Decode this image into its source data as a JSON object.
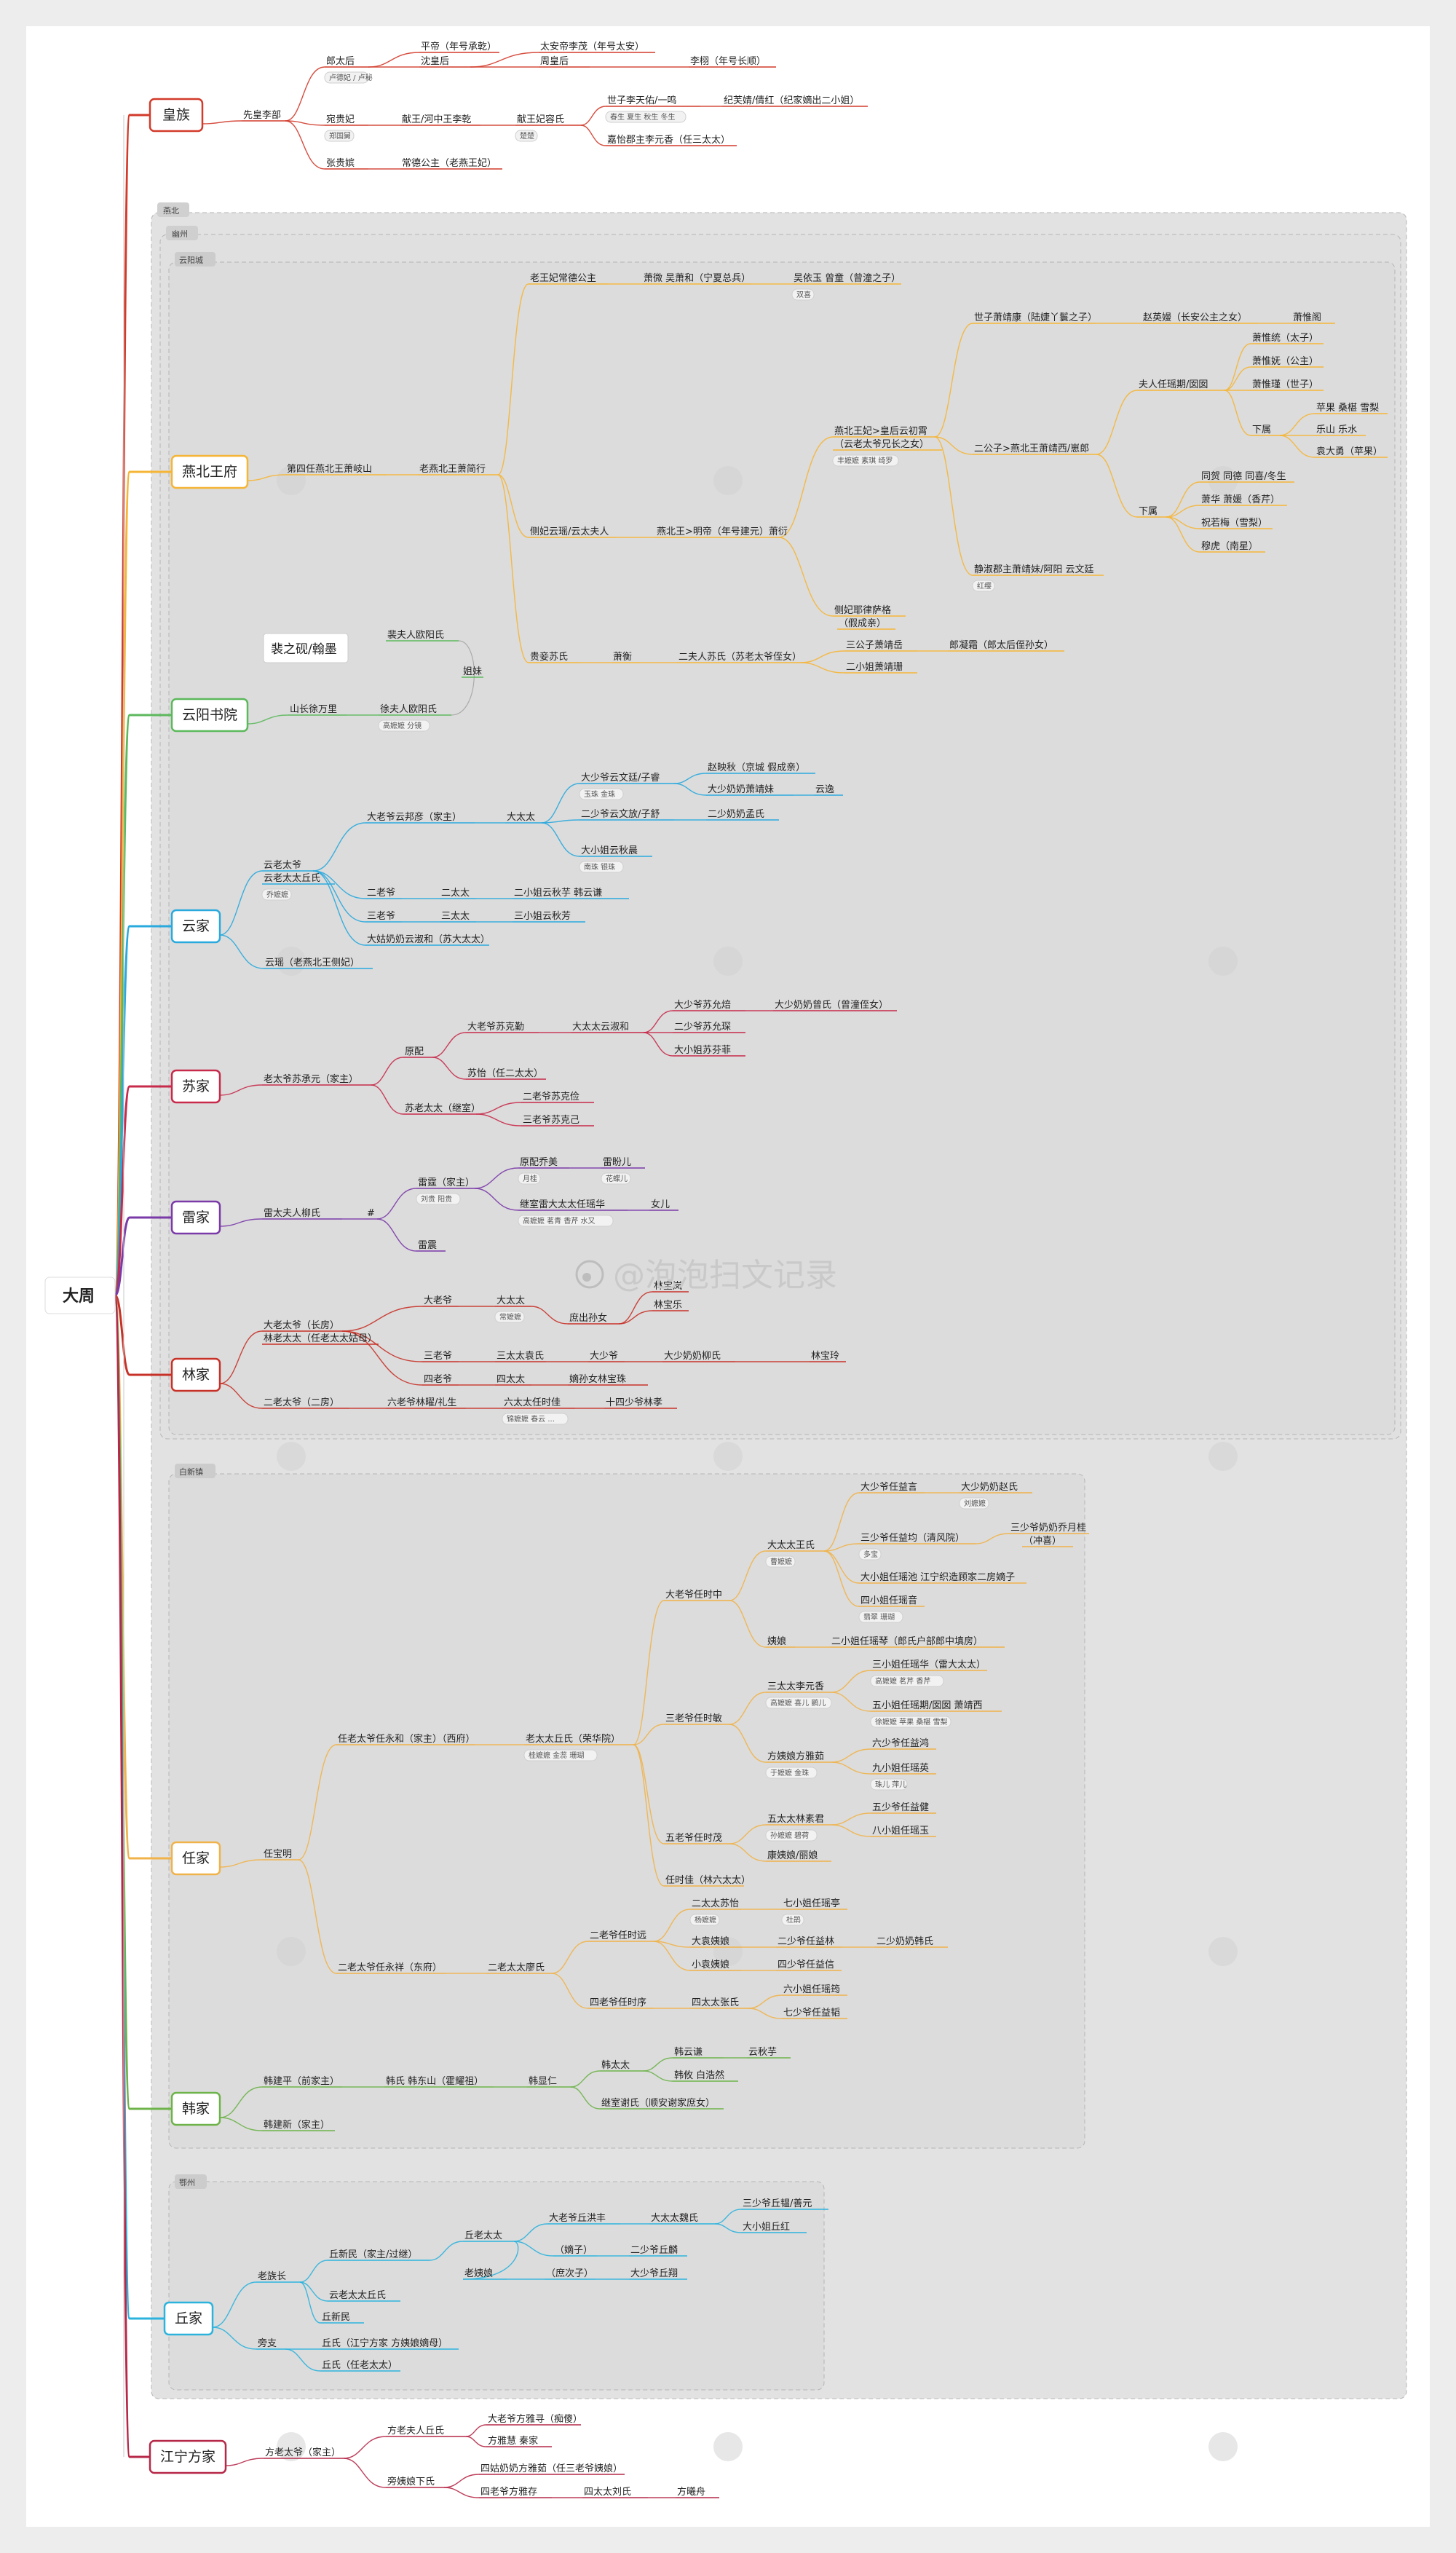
{
  "root": "大周",
  "watermark": "@泡泡扫文记录",
  "regions": {
    "yanbei": "燕北",
    "youzhou": "幽州",
    "yunyang": "云阳城",
    "baixin": "白新镇",
    "ezhou": "鄂州"
  },
  "callout": "裴之砚/翰墨",
  "colors": {
    "huangzu": "#d23a2a",
    "yanbei": "#f5b536",
    "shuyuan": "#5cb85c",
    "yunjia": "#29a9dd",
    "sujia": "#c72a4a",
    "leijia": "#7a3aa8",
    "linjia": "#c73228",
    "renjia": "#f0b24a",
    "hanjia": "#6db34a",
    "qiujia": "#2cb3dd",
    "fangjia": "#b62848"
  },
  "nodes": [
    {
      "id": "huangzu",
      "main": true,
      "text": "皇族"
    },
    {
      "id": "hz1",
      "text": "先皇李部"
    },
    {
      "id": "hz2",
      "text": "郎太后"
    },
    {
      "id": "hz3",
      "text": "平帝（年号承乾）"
    },
    {
      "id": "hz4",
      "text": "沈皇后"
    },
    {
      "id": "hz5",
      "text": "太安帝李茂（年号太安）"
    },
    {
      "id": "hz6",
      "text": "周皇后"
    },
    {
      "id": "hz7",
      "text": "李栩（年号长顺）"
    },
    {
      "id": "hz8",
      "text": "宛贵妃"
    },
    {
      "id": "hz9",
      "text": "献王/河中王李乾"
    },
    {
      "id": "hz10",
      "text": "献王妃容氏"
    },
    {
      "id": "hz11",
      "text": "世子李天佑/一鸣"
    },
    {
      "id": "hz12",
      "text": "纪芙婧/倩红（纪家嫡出二小姐）"
    },
    {
      "id": "hz13",
      "text": "嘉怡郡主李元香（任三太太）"
    },
    {
      "id": "hz14",
      "text": "张贵嫔"
    },
    {
      "id": "hz15",
      "text": "常德公主（老燕王妃）"
    },
    {
      "id": "yanbei",
      "main": true,
      "text": "燕北王府"
    },
    {
      "id": "yb1",
      "text": "第四任燕北王萧岐山"
    },
    {
      "id": "yb2",
      "text": "老燕北王萧简行"
    },
    {
      "id": "yb3",
      "text": "老王妃常德公主"
    },
    {
      "id": "yb4",
      "text": "萧微 吴萧和（宁夏总兵）"
    },
    {
      "id": "yb5",
      "text": "吴依玉 曾童（曾潼之子）"
    },
    {
      "id": "yb6",
      "text": "燕北王妃>皇后云初霄"
    },
    {
      "id": "yb6b",
      "text": "（云老太爷兄长之女）"
    },
    {
      "id": "yb7",
      "text": "世子萧靖康（陆婕丫鬟之子）"
    },
    {
      "id": "yb8",
      "text": "赵英嫚（长安公主之女）"
    },
    {
      "id": "yb9",
      "text": "萧惟阁"
    },
    {
      "id": "yb10",
      "text": "二公子>燕北王萧靖西/崽郎"
    },
    {
      "id": "yb11",
      "text": "夫人任瑶期/囡囡"
    },
    {
      "id": "yb12",
      "text": "萧惟统（太子）"
    },
    {
      "id": "yb13",
      "text": "萧惟妩（公主）"
    },
    {
      "id": "yb14",
      "text": "萧惟瑾（世子）"
    },
    {
      "id": "yb15",
      "text": "下属"
    },
    {
      "id": "yb16",
      "text": "苹果 桑椹 雪梨"
    },
    {
      "id": "yb17",
      "text": "乐山 乐水"
    },
    {
      "id": "yb18",
      "text": "袁大勇（苹果）"
    },
    {
      "id": "yb19",
      "text": "下属"
    },
    {
      "id": "yb20",
      "text": "同贺 同德 同喜/冬生"
    },
    {
      "id": "yb21",
      "text": "萧华 萧媛（香芹）"
    },
    {
      "id": "yb22",
      "text": "祝若梅（雪梨）"
    },
    {
      "id": "yb23",
      "text": "穆虎（南星）"
    },
    {
      "id": "yb24",
      "text": "静淑郡主萧靖妹/阿阳 云文廷"
    },
    {
      "id": "yb25",
      "text": "侧妃云瑶/云太夫人"
    },
    {
      "id": "yb26",
      "text": "燕北王>明帝（年号建元）萧衍"
    },
    {
      "id": "yb27",
      "text": "侧妃耶律萨格"
    },
    {
      "id": "yb27b",
      "text": "（假成亲）"
    },
    {
      "id": "yb28",
      "text": "贵妾苏氏"
    },
    {
      "id": "yb29",
      "text": "萧衡"
    },
    {
      "id": "yb30",
      "text": "二夫人苏氏（苏老太爷侄女）"
    },
    {
      "id": "yb31",
      "text": "三公子萧靖岳"
    },
    {
      "id": "yb32",
      "text": "郎凝霜（郎太后侄孙女）"
    },
    {
      "id": "yb33",
      "text": "二小姐萧靖珊"
    },
    {
      "id": "shuyuan",
      "main": true,
      "text": "云阳书院"
    },
    {
      "id": "sy1",
      "text": "山长徐万里"
    },
    {
      "id": "sy2",
      "text": "裴夫人欧阳氏"
    },
    {
      "id": "sy3",
      "text": "徐夫人欧阳氏"
    },
    {
      "id": "sy4",
      "text": "姐妹"
    },
    {
      "id": "yunjia",
      "main": true,
      "text": "云家"
    },
    {
      "id": "yj1",
      "text": "云老太爷"
    },
    {
      "id": "yj1b",
      "text": "云老太太丘氏"
    },
    {
      "id": "yj2",
      "text": "大老爷云邦彦（家主）"
    },
    {
      "id": "yj3",
      "text": "大太太"
    },
    {
      "id": "yj4",
      "text": "大少爷云文廷/子睿"
    },
    {
      "id": "yj5",
      "text": "赵映秋（京城 假成亲）"
    },
    {
      "id": "yj6",
      "text": "大少奶奶萧靖妹"
    },
    {
      "id": "yj7",
      "text": "云逸"
    },
    {
      "id": "yj8",
      "text": "二少爷云文放/子舒"
    },
    {
      "id": "yj9",
      "text": "二少奶奶孟氏"
    },
    {
      "id": "yj10",
      "text": "大小姐云秋晨"
    },
    {
      "id": "yj11",
      "text": "二老爷"
    },
    {
      "id": "yj12",
      "text": "二太太"
    },
    {
      "id": "yj13",
      "text": "二小姐云秋芋 韩云谦"
    },
    {
      "id": "yj14",
      "text": "三老爷"
    },
    {
      "id": "yj15",
      "text": "三太太"
    },
    {
      "id": "yj16",
      "text": "三小姐云秋芳"
    },
    {
      "id": "yj17",
      "text": "大姑奶奶云淑和（苏大太太）"
    },
    {
      "id": "yj18",
      "text": "云瑶（老燕北王侧妃）"
    },
    {
      "id": "sujia",
      "main": true,
      "text": "苏家"
    },
    {
      "id": "sj1",
      "text": "老太爷苏承元（家主）"
    },
    {
      "id": "sj2",
      "text": "原配"
    },
    {
      "id": "sj3",
      "text": "大老爷苏克勤"
    },
    {
      "id": "sj4",
      "text": "大太太云淑和"
    },
    {
      "id": "sj5",
      "text": "大少爷苏允焙"
    },
    {
      "id": "sj6",
      "text": "大少奶奶曾氏（曾潼侄女）"
    },
    {
      "id": "sj7",
      "text": "二少爷苏允琛"
    },
    {
      "id": "sj8",
      "text": "大小姐苏芬菲"
    },
    {
      "id": "sj9",
      "text": "苏怡（任二太太）"
    },
    {
      "id": "sj10",
      "text": "苏老太太（继室）"
    },
    {
      "id": "sj11",
      "text": "二老爷苏克俭"
    },
    {
      "id": "sj12",
      "text": "三老爷苏克己"
    },
    {
      "id": "leijia",
      "main": true,
      "text": "雷家"
    },
    {
      "id": "lj1",
      "text": "雷太夫人柳氏"
    },
    {
      "id": "lj2",
      "text": "雷霆（家主）"
    },
    {
      "id": "lj3",
      "text": "原配乔美"
    },
    {
      "id": "lj4",
      "text": "雷盼儿"
    },
    {
      "id": "lj5",
      "text": "继室雷大太太任瑶华"
    },
    {
      "id": "lj6",
      "text": "女儿"
    },
    {
      "id": "lj7",
      "text": "雷震"
    },
    {
      "id": "lj8",
      "text": "#"
    },
    {
      "id": "linjia",
      "main": true,
      "text": "林家"
    },
    {
      "id": "lin1",
      "text": "大老太爷（长房）"
    },
    {
      "id": "lin1b",
      "text": "林老太太（任老太太姑母）"
    },
    {
      "id": "lin2",
      "text": "大老爷"
    },
    {
      "id": "lin3",
      "text": "大太太"
    },
    {
      "id": "lin4",
      "text": "林宝岚"
    },
    {
      "id": "lin5",
      "text": "庶出孙女"
    },
    {
      "id": "lin6",
      "text": "林宝乐"
    },
    {
      "id": "lin7",
      "text": "三老爷"
    },
    {
      "id": "lin8",
      "text": "三太太袁氏"
    },
    {
      "id": "lin9",
      "text": "大少爷"
    },
    {
      "id": "lin10",
      "text": "大少奶奶柳氏"
    },
    {
      "id": "lin11",
      "text": "林宝玲"
    },
    {
      "id": "lin12",
      "text": "四老爷"
    },
    {
      "id": "lin13",
      "text": "四太太"
    },
    {
      "id": "lin14",
      "text": "嫡孙女林宝珠"
    },
    {
      "id": "lin15",
      "text": "二老太爷（二房）"
    },
    {
      "id": "lin16",
      "text": "六老爷林曜/礼生"
    },
    {
      "id": "lin17",
      "text": "六太太任时佳"
    },
    {
      "id": "lin18",
      "text": "十四少爷林孝"
    },
    {
      "id": "renjia",
      "main": true,
      "text": "任家"
    },
    {
      "id": "rj1",
      "text": "任宝明"
    },
    {
      "id": "rj2",
      "text": "任老太爷任永和（家主）（西府）"
    },
    {
      "id": "rj3",
      "text": "老太太丘氏（荣华院）"
    },
    {
      "id": "rj4",
      "text": "大老爷任时中"
    },
    {
      "id": "rj5",
      "text": "大太太王氏"
    },
    {
      "id": "rj6",
      "text": "大少爷任益言"
    },
    {
      "id": "rj7",
      "text": "大少奶奶赵氏"
    },
    {
      "id": "rj8",
      "text": "三少爷任益均（清风院）"
    },
    {
      "id": "rj9",
      "text": "三少爷奶奶乔月桂"
    },
    {
      "id": "rj9b",
      "text": "（冲喜）"
    },
    {
      "id": "rj10",
      "text": "大小姐任瑶池 江宁织造顾家二房嫡子"
    },
    {
      "id": "rj11",
      "text": "四小姐任瑶音"
    },
    {
      "id": "rj12",
      "text": "姨娘"
    },
    {
      "id": "rj13",
      "text": "二小姐任瑶琴（郎氏户部郎中填房）"
    },
    {
      "id": "rj14",
      "text": "三老爷任时敏"
    },
    {
      "id": "rj15",
      "text": "三太太李元香"
    },
    {
      "id": "rj16",
      "text": "三小姐任瑶华（雷大太太）"
    },
    {
      "id": "rj17",
      "text": "五小姐任瑶期/囡囡 萧靖西"
    },
    {
      "id": "rj18",
      "text": "方姨娘方雅茹"
    },
    {
      "id": "rj19",
      "text": "六少爷任益鸿"
    },
    {
      "id": "rj20",
      "text": "九小姐任瑶英"
    },
    {
      "id": "rj21",
      "text": "五老爷任时茂"
    },
    {
      "id": "rj22",
      "text": "五太太林素君"
    },
    {
      "id": "rj23",
      "text": "五少爷任益健"
    },
    {
      "id": "rj24",
      "text": "八小姐任瑶玉"
    },
    {
      "id": "rj25",
      "text": "康姨娘/丽娘"
    },
    {
      "id": "rj26",
      "text": "任时佳（林六太太）"
    },
    {
      "id": "rj27",
      "text": "二老太爷任永祥（东府）"
    },
    {
      "id": "rj28",
      "text": "二老太太廖氏"
    },
    {
      "id": "rj29",
      "text": "二老爷任时远"
    },
    {
      "id": "rj30",
      "text": "二太太苏怡"
    },
    {
      "id": "rj31",
      "text": "七小姐任瑶亭"
    },
    {
      "id": "rj32",
      "text": "大袁姨娘"
    },
    {
      "id": "rj33",
      "text": "二少爷任益林"
    },
    {
      "id": "rj34",
      "text": "二少奶奶韩氏"
    },
    {
      "id": "rj35",
      "text": "小袁姨娘"
    },
    {
      "id": "rj36",
      "text": "四少爷任益信"
    },
    {
      "id": "rj37",
      "text": "四老爷任时序"
    },
    {
      "id": "rj38",
      "text": "四太太张氏"
    },
    {
      "id": "rj39",
      "text": "六小姐任瑶筠"
    },
    {
      "id": "rj40",
      "text": "七少爷任益韬"
    },
    {
      "id": "hanjia",
      "main": true,
      "text": "韩家"
    },
    {
      "id": "hj1",
      "text": "韩建平（前家主）"
    },
    {
      "id": "hj2",
      "text": "韩氏 韩东山（霍耀祖）"
    },
    {
      "id": "hj3",
      "text": "韩显仁"
    },
    {
      "id": "hj4",
      "text": "韩太太"
    },
    {
      "id": "hj5",
      "text": "韩云谦"
    },
    {
      "id": "hj6",
      "text": "云秋芋"
    },
    {
      "id": "hj7",
      "text": "韩攸 白浩然"
    },
    {
      "id": "hj8",
      "text": "继室谢氏（顺安谢家庶女）"
    },
    {
      "id": "hj9",
      "text": "韩建新（家主）"
    },
    {
      "id": "qiujia",
      "main": true,
      "text": "丘家"
    },
    {
      "id": "qj1",
      "text": "老族长"
    },
    {
      "id": "qj2",
      "text": "丘新民（家主/过继）"
    },
    {
      "id": "qj3",
      "text": "丘老太太"
    },
    {
      "id": "qj4",
      "text": "大老爷丘洪丰"
    },
    {
      "id": "qj5",
      "text": "大太太魏氏"
    },
    {
      "id": "qj6",
      "text": "三少爷丘韫/善元"
    },
    {
      "id": "qj7",
      "text": "大小姐丘红"
    },
    {
      "id": "qj8",
      "text": "（嫡子）"
    },
    {
      "id": "qj9",
      "text": "二少爷丘麟"
    },
    {
      "id": "qj10",
      "text": "老姨娘"
    },
    {
      "id": "qj11",
      "text": "（庶次子）"
    },
    {
      "id": "qj12",
      "text": "大少爷丘翔"
    },
    {
      "id": "qj13",
      "text": "云老太太丘氏"
    },
    {
      "id": "qj14",
      "text": "丘新民"
    },
    {
      "id": "qj15",
      "text": "旁支"
    },
    {
      "id": "qj16",
      "text": "丘氏（江宁方家 方姨娘嫡母）"
    },
    {
      "id": "qj17",
      "text": "丘氏（任老太太）"
    },
    {
      "id": "fangjia",
      "main": true,
      "text": "江宁方家"
    },
    {
      "id": "fj1",
      "text": "方老太爷（家主）"
    },
    {
      "id": "fj2",
      "text": "方老夫人丘氏"
    },
    {
      "id": "fj3",
      "text": "大老爷方雅寻（痴傻）"
    },
    {
      "id": "fj4",
      "text": "方雅慧 秦家"
    },
    {
      "id": "fj5",
      "text": "旁姨娘下氏"
    },
    {
      "id": "fj6",
      "text": "四姑奶奶方雅茹（任三老爷姨娘）"
    },
    {
      "id": "fj7",
      "text": "四老爷方雅存"
    },
    {
      "id": "fj8",
      "text": "四太太刘氏"
    },
    {
      "id": "fj9",
      "text": "方曦舟"
    }
  ],
  "tags": [
    {
      "id": "g1",
      "text": "卢德妃 / 卢秘"
    },
    {
      "id": "g2",
      "text": "郑国舅"
    },
    {
      "id": "g3",
      "text": "春生 夏生 秋生 冬生"
    },
    {
      "id": "g4",
      "text": "楚楚"
    },
    {
      "id": "g5",
      "text": "双喜"
    },
    {
      "id": "g6",
      "text": "丰嬷嬷 素琪 绮罗"
    },
    {
      "id": "g7",
      "text": "红缨"
    },
    {
      "id": "g8",
      "text": "高嬷嬷 分镜"
    },
    {
      "id": "g9",
      "text": "玉珠 金珠"
    },
    {
      "id": "g10",
      "text": "南珠 银珠"
    },
    {
      "id": "g11",
      "text": "乔嬷嬷"
    },
    {
      "id": "g12",
      "text": "刘贵 阳贵"
    },
    {
      "id": "g13",
      "text": "月桂"
    },
    {
      "id": "g14",
      "text": "花蝶儿"
    },
    {
      "id": "g15",
      "text": "高嬷嬷 茗青 香芹 水又"
    },
    {
      "id": "g16",
      "text": "常嬷嬷"
    },
    {
      "id": "g17",
      "text": "锦嬷嬷 春云 ..."
    },
    {
      "id": "g18",
      "text": "桂嬷嬷 金蕊 珊瑚"
    },
    {
      "id": "g19",
      "text": "曹嬷嬷"
    },
    {
      "id": "g20",
      "text": "刘嬷嬷"
    },
    {
      "id": "g21",
      "text": "多宝"
    },
    {
      "id": "g22",
      "text": "翡翠 珊瑚"
    },
    {
      "id": "g23",
      "text": "高嬷嬷 茗芹 香芹"
    },
    {
      "id": "g24",
      "text": "高嬷嬷 喜儿 鹂儿"
    },
    {
      "id": "g25",
      "text": "徐嬷嬷 苹果 桑椹 雪梨"
    },
    {
      "id": "g26",
      "text": "于嬷嬷 金珠"
    },
    {
      "id": "g27",
      "text": "珠儿 萍儿"
    },
    {
      "id": "g28",
      "text": "孙嬷嬷 碧荷"
    },
    {
      "id": "g29",
      "text": "杨嬷嬷"
    },
    {
      "id": "g30",
      "text": "杜鹃"
    }
  ]
}
